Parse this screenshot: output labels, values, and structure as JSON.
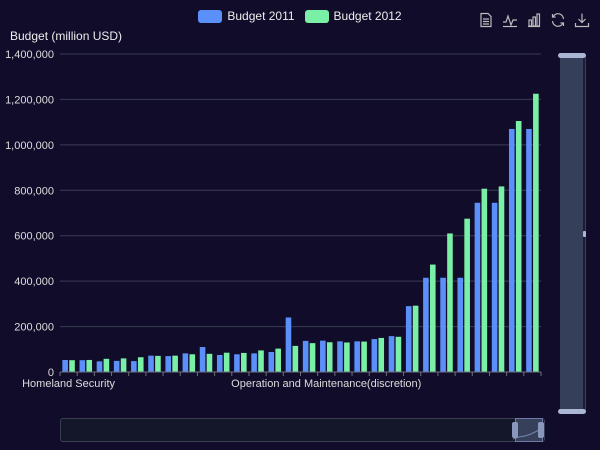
{
  "legend": {
    "items": [
      {
        "label": "Budget 2011",
        "color": "#5b8ff9"
      },
      {
        "label": "Budget 2012",
        "color": "#7af0a6"
      }
    ]
  },
  "toolbox": {
    "icons": [
      "data-view-icon",
      "line-chart-icon",
      "bar-chart-icon",
      "restore-icon",
      "save-image-icon"
    ]
  },
  "chart_data": {
    "type": "bar",
    "title": "",
    "ylabel": "Budget (million USD)",
    "xlabel": "",
    "ylim": [
      0,
      1400000
    ],
    "yticks": [
      0,
      200000,
      400000,
      600000,
      800000,
      1000000,
      1200000,
      1400000
    ],
    "ytick_labels": [
      "0",
      "200,000",
      "400,000",
      "600,000",
      "800,000",
      "1,000,000",
      "1,200,000",
      "1,400,000"
    ],
    "xtick_labels": [
      {
        "index": 0,
        "label": "Homeland Security"
      },
      {
        "index": 15,
        "label": "Operation and Maintenance(discretion)"
      }
    ],
    "grid": true,
    "series": [
      {
        "name": "Budget 2011",
        "color": "#5b8ff9",
        "values": [
          53000,
          52000,
          47000,
          49000,
          48000,
          72000,
          70000,
          82000,
          110000,
          75000,
          78000,
          82000,
          88000,
          240000,
          137000,
          138000,
          135000,
          135000,
          145000,
          158000,
          290000,
          415000,
          415000,
          415000,
          745000,
          745000,
          1070000,
          1070000
        ]
      },
      {
        "name": "Budget 2012",
        "color": "#7af0a6",
        "values": [
          52000,
          53000,
          58000,
          60000,
          65000,
          71000,
          72000,
          78000,
          80000,
          85000,
          84000,
          95000,
          103000,
          115000,
          127000,
          131000,
          130000,
          134000,
          150000,
          155000,
          292000,
          473000,
          610000,
          675000,
          807000,
          817000,
          1105000,
          1225000
        ]
      }
    ]
  },
  "zoom": {
    "vertical": {
      "start": 0,
      "end": 100
    },
    "horizontal": {
      "start": 94,
      "end": 100
    }
  }
}
